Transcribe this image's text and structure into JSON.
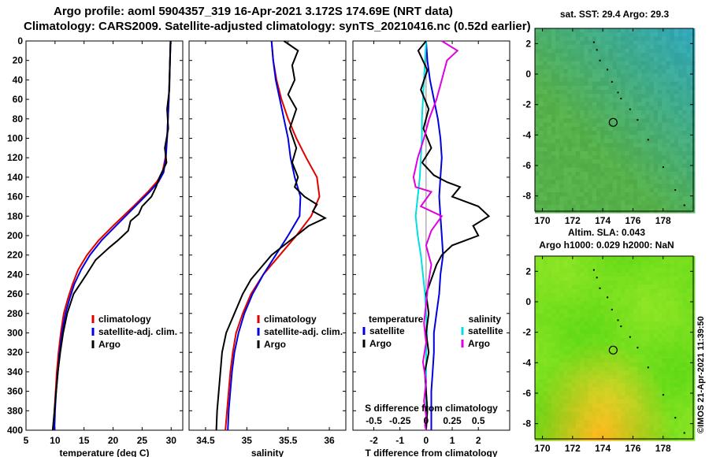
{
  "title_line1": "Argo profile: aoml 5904357_319 16-Apr-2021 3.172S 174.69E (NRT data)",
  "title_line2": "Climatology: CARS2009. Satellite-adjusted climatology: synTS_20210416.nc (0.52d earlier)",
  "watermark": "©IMOS 21-Apr-2021 11:39:50",
  "colors": {
    "climatology": "#e00000",
    "satellite": "#0000e0",
    "argo": "#000000",
    "sal_diff": "#e000e0",
    "sat_sal": "#00e0e0"
  },
  "chart_data": [
    {
      "type": "line",
      "xlabel": "temperature (deg C)",
      "ylabel": "",
      "xlim": [
        5,
        32
      ],
      "ylim": [
        400,
        0
      ],
      "xticks": [
        5,
        10,
        15,
        20,
        25,
        30
      ],
      "xtick_labels": [
        "5",
        "10",
        "15",
        "20",
        "25",
        "30"
      ],
      "yticks": [
        0,
        20,
        40,
        60,
        80,
        100,
        120,
        140,
        160,
        180,
        200,
        220,
        240,
        260,
        280,
        300,
        320,
        340,
        360,
        380,
        400
      ],
      "ytick_labels": [
        "0",
        "20",
        "40",
        "60",
        "80",
        "100",
        "120",
        "140",
        "160",
        "180",
        "200",
        "220",
        "240",
        "260",
        "280",
        "300",
        "320",
        "340",
        "360",
        "380",
        "400"
      ],
      "legend": [
        "climatology",
        "satellite-adj. clim.",
        "Argo"
      ],
      "series": [
        {
          "name": "climatology",
          "color_key": "climatology",
          "x": [
            29.9,
            29.8,
            29.6,
            29.3,
            29.0,
            28.5,
            27.5,
            26.0,
            23.5,
            20.0,
            17.5,
            15.5,
            14.0,
            13.0,
            12.2,
            11.5,
            11.0,
            10.6,
            10.3,
            10.1,
            9.9,
            9.8
          ],
          "y": [
            0,
            20,
            60,
            100,
            120,
            135,
            145,
            155,
            170,
            190,
            205,
            220,
            235,
            250,
            265,
            280,
            300,
            320,
            340,
            360,
            380,
            400
          ]
        },
        {
          "name": "satellite-adj. clim.",
          "color_key": "satellite",
          "x": [
            29.9,
            29.8,
            29.6,
            29.3,
            29.1,
            28.7,
            27.8,
            26.3,
            23.8,
            20.5,
            18.0,
            16.0,
            14.5,
            13.3,
            12.5,
            11.8,
            11.2,
            10.8,
            10.5,
            10.2,
            10.0,
            9.9
          ],
          "y": [
            0,
            20,
            60,
            100,
            120,
            135,
            145,
            155,
            170,
            190,
            205,
            220,
            235,
            250,
            265,
            280,
            300,
            320,
            340,
            360,
            380,
            400
          ]
        },
        {
          "name": "Argo",
          "color_key": "argo",
          "x": [
            29.9,
            29.8,
            29.7,
            29.3,
            29.5,
            28.9,
            29.2,
            28.0,
            27.4,
            26.6,
            25.0,
            24.4,
            23.0,
            22.6,
            20.8,
            19.4,
            17.0,
            15.4,
            14.3,
            13.2,
            12.1,
            11.4,
            10.9,
            10.5,
            10.2,
            9.9,
            9.6
          ],
          "y": [
            0,
            20,
            50,
            70,
            90,
            110,
            125,
            140,
            150,
            160,
            170,
            178,
            185,
            195,
            205,
            212,
            225,
            240,
            250,
            260,
            280,
            300,
            320,
            340,
            360,
            380,
            400
          ]
        }
      ]
    },
    {
      "type": "line",
      "xlabel": "salinity",
      "xlim": [
        34.3,
        36.2
      ],
      "ylim": [
        400,
        0
      ],
      "xticks": [
        34.5,
        35,
        35.5,
        36
      ],
      "xtick_labels": [
        "34.5",
        "35",
        "35.5",
        "36"
      ],
      "legend": [
        "climatology",
        "satellite-adj. clim.",
        "Argo"
      ],
      "series": [
        {
          "name": "climatology",
          "color_key": "climatology",
          "x": [
            35.3,
            35.32,
            35.36,
            35.42,
            35.5,
            35.6,
            35.72,
            35.85,
            35.88,
            35.78,
            35.6,
            35.4,
            35.2,
            35.05,
            34.95,
            34.87,
            34.83,
            34.8,
            34.78,
            34.76,
            34.74
          ],
          "y": [
            0,
            20,
            40,
            60,
            80,
            100,
            120,
            140,
            160,
            180,
            200,
            220,
            240,
            260,
            280,
            300,
            320,
            340,
            360,
            380,
            400
          ]
        },
        {
          "name": "satellite-adj. clim.",
          "color_key": "satellite",
          "x": [
            35.3,
            35.32,
            35.35,
            35.4,
            35.45,
            35.5,
            35.53,
            35.58,
            35.65,
            35.64,
            35.5,
            35.35,
            35.2,
            35.07,
            34.97,
            34.9,
            34.85,
            34.82,
            34.8,
            34.78,
            34.77
          ],
          "y": [
            0,
            20,
            40,
            60,
            80,
            100,
            120,
            140,
            160,
            180,
            200,
            220,
            240,
            260,
            280,
            300,
            320,
            340,
            360,
            380,
            400
          ]
        },
        {
          "name": "Argo",
          "color_key": "argo",
          "x": [
            35.45,
            35.62,
            35.55,
            35.58,
            35.5,
            35.6,
            35.52,
            35.6,
            35.55,
            35.62,
            35.58,
            35.7,
            35.85,
            35.8,
            35.95,
            35.75,
            35.6,
            35.45,
            35.3,
            35.2,
            35.05,
            34.95,
            34.85,
            34.75,
            34.7,
            34.68,
            34.66,
            34.64,
            34.63
          ],
          "y": [
            0,
            10,
            25,
            40,
            55,
            70,
            90,
            110,
            125,
            140,
            150,
            160,
            168,
            175,
            182,
            190,
            200,
            210,
            220,
            230,
            245,
            260,
            280,
            300,
            320,
            340,
            360,
            380,
            400
          ]
        }
      ]
    },
    {
      "type": "line",
      "xlabel": "T difference from climatology",
      "xlabel2": "S difference from climatology",
      "xlim": [
        -2.8,
        3.2
      ],
      "ylim": [
        400,
        0
      ],
      "xticks": [
        -2,
        -1,
        0,
        1,
        2
      ],
      "xtick_labels": [
        "-2",
        "-1",
        "0",
        "1",
        "2"
      ],
      "sal_xticks": [
        -0.5,
        -0.25,
        0,
        0.25,
        0.5
      ],
      "sal_xtick_labels": [
        "-0.5",
        "-0.25",
        "0",
        "0.25",
        "0.5"
      ],
      "sal_scale": 4,
      "legend_temperature": [
        "temperature",
        "satellite",
        "Argo"
      ],
      "legend_salinity": [
        "salinity",
        "satellite",
        "Argo"
      ],
      "series": [
        {
          "name": "temperature satellite",
          "color_key": "satellite",
          "axis": "T",
          "x": [
            0.0,
            0.05,
            0.15,
            0.3,
            0.45,
            0.55,
            0.6,
            0.55,
            0.5,
            0.55,
            0.6,
            0.65,
            0.55,
            0.5,
            0.4,
            0.3,
            0.3,
            0.25,
            0.2,
            0.2,
            0.2
          ],
          "y": [
            0,
            20,
            40,
            60,
            80,
            100,
            120,
            140,
            160,
            180,
            200,
            220,
            240,
            260,
            280,
            300,
            320,
            340,
            360,
            380,
            400
          ]
        },
        {
          "name": "salinity satellite",
          "color_key": "sat_sal",
          "axis": "S",
          "x": [
            0.0,
            -0.01,
            -0.02,
            -0.03,
            -0.04,
            -0.04,
            -0.05,
            -0.06,
            -0.08,
            -0.1,
            -0.08,
            -0.05,
            -0.03,
            -0.01,
            0.0,
            0.01,
            0.0,
            0.0,
            0.0,
            0.0,
            0.0
          ],
          "y": [
            0,
            20,
            40,
            60,
            80,
            100,
            120,
            140,
            160,
            180,
            200,
            220,
            240,
            260,
            280,
            300,
            320,
            340,
            360,
            380,
            400
          ]
        },
        {
          "name": "temperature Argo",
          "color_key": "argo",
          "axis": "T",
          "x": [
            0.0,
            -0.3,
            0.05,
            -0.2,
            0.1,
            -0.1,
            0.2,
            -0.15,
            0.3,
            0.8,
            1.3,
            1.0,
            2.0,
            2.4,
            1.8,
            2.0,
            1.0,
            0.6,
            0.4,
            0.2,
            0.0,
            0.1,
            0.0,
            0.1,
            -0.05,
            0.0,
            0.05,
            0.0
          ],
          "y": [
            0,
            10,
            30,
            50,
            70,
            90,
            110,
            125,
            138,
            145,
            150,
            160,
            170,
            180,
            190,
            200,
            210,
            220,
            230,
            245,
            260,
            280,
            300,
            320,
            340,
            360,
            380,
            400
          ]
        },
        {
          "name": "salinity Argo",
          "color_key": "sal_diff",
          "axis": "S",
          "x": [
            0.15,
            0.3,
            0.2,
            0.15,
            0.1,
            0.03,
            -0.02,
            -0.08,
            -0.12,
            -0.1,
            0.05,
            -0.05,
            0.15,
            0.05,
            0.0,
            0.05,
            0.02,
            0.0,
            -0.02,
            0.0,
            -0.03,
            0.0,
            -0.02,
            0.0,
            -0.01,
            0.0
          ],
          "y": [
            0,
            10,
            20,
            40,
            60,
            80,
            100,
            120,
            140,
            150,
            155,
            170,
            180,
            195,
            210,
            230,
            250,
            270,
            290,
            310,
            330,
            350,
            370,
            385,
            395,
            400
          ]
        }
      ]
    },
    {
      "type": "heatmap",
      "title": "sat. SST: 29.4 Argo: 29.3",
      "xlim": [
        169.5,
        180
      ],
      "ylim": [
        -9,
        3
      ],
      "xticks": [
        170,
        172,
        174,
        176,
        178
      ],
      "xtick_labels": [
        "170",
        "172",
        "174",
        "176",
        "178"
      ],
      "yticks": [
        2,
        0,
        -2,
        -4,
        -6,
        -8
      ],
      "ytick_labels": [
        "2",
        "0",
        "-2",
        "-4",
        "-6",
        "-8"
      ],
      "marker": {
        "lon": 174.69,
        "lat": -3.172
      },
      "track": {
        "lon": [
          173.4,
          173.6,
          173.8,
          174.3,
          174.6,
          175.0,
          175.2,
          175.8,
          176.3,
          177.0,
          178.0,
          178.8,
          179.4
        ],
        "lat": [
          2.1,
          1.6,
          0.9,
          0.3,
          -0.5,
          -1.2,
          -1.6,
          -2.3,
          -3.0,
          -4.3,
          -6.1,
          -7.6,
          -8.6
        ]
      }
    },
    {
      "type": "heatmap",
      "title": "Altim. SLA: 0.043",
      "subtitle": "Argo h1000: 0.029 h2000: NaN",
      "xlim": [
        169.5,
        180
      ],
      "ylim": [
        -9,
        3
      ],
      "xticks": [
        170,
        172,
        174,
        176,
        178
      ],
      "xtick_labels": [
        "170",
        "172",
        "174",
        "176",
        "178"
      ],
      "yticks": [
        2,
        0,
        -2,
        -4,
        -6,
        -8
      ],
      "ytick_labels": [
        "2",
        "0",
        "-2",
        "-4",
        "-6",
        "-8"
      ],
      "marker": {
        "lon": 174.69,
        "lat": -3.172
      },
      "track": {
        "lon": [
          173.4,
          173.6,
          173.8,
          174.3,
          174.6,
          175.0,
          175.2,
          175.8,
          176.3,
          177.0,
          178.0,
          178.8,
          179.4
        ],
        "lat": [
          2.1,
          1.6,
          0.9,
          0.3,
          -0.5,
          -1.2,
          -1.6,
          -2.3,
          -3.0,
          -4.3,
          -6.1,
          -7.6,
          -8.6
        ]
      }
    }
  ]
}
